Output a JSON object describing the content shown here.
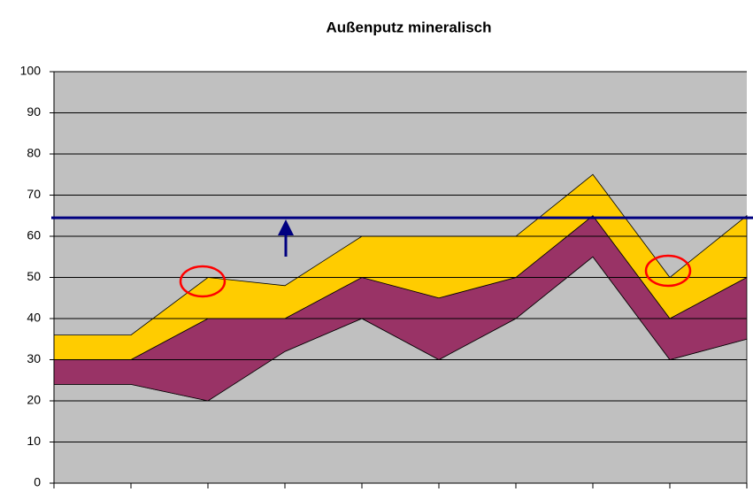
{
  "chart_data": {
    "type": "stacked_area",
    "title": "Außenputz mineralisch",
    "categories": [
      null,
      null,
      null,
      null,
      null,
      null,
      null,
      null,
      null,
      null
    ],
    "series": [
      {
        "color": "#c0c0c0",
        "values": [
          24,
          24,
          20,
          32,
          40,
          30,
          40,
          55,
          30,
          35
        ]
      },
      {
        "color": "#993366",
        "values": [
          6,
          6,
          20,
          8,
          10,
          15,
          10,
          10,
          10,
          15
        ]
      },
      {
        "color": "#ffcc00",
        "values": [
          6,
          6,
          10,
          8,
          10,
          15,
          10,
          10,
          10,
          15
        ]
      }
    ],
    "reference_line": {
      "value": 64.5,
      "color": "#000080"
    },
    "ylim": [
      0,
      100
    ],
    "yticks": [
      0,
      10,
      20,
      30,
      40,
      50,
      60,
      70,
      80,
      90,
      100
    ],
    "grid": true
  }
}
